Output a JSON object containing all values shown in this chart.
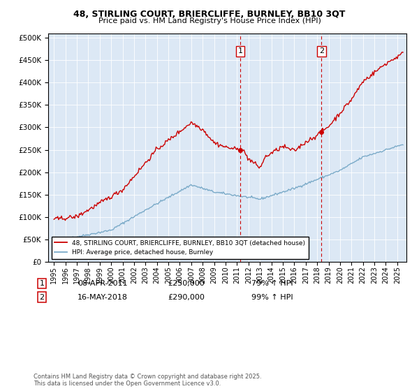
{
  "title": "48, STIRLING COURT, BRIERCLIFFE, BURNLEY, BB10 3QT",
  "subtitle": "Price paid vs. HM Land Registry's House Price Index (HPI)",
  "legend_line1": "48, STIRLING COURT, BRIERCLIFFE, BURNLEY, BB10 3QT (detached house)",
  "legend_line2": "HPI: Average price, detached house, Burnley",
  "annotation1_date": "08-APR-2011",
  "annotation1_price": "£250,000",
  "annotation1_hpi": "79% ↑ HPI",
  "annotation2_date": "16-MAY-2018",
  "annotation2_price": "£290,000",
  "annotation2_hpi": "99% ↑ HPI",
  "footnote": "Contains HM Land Registry data © Crown copyright and database right 2025.\nThis data is licensed under the Open Government Licence v3.0.",
  "transaction1_x": 2011.27,
  "transaction1_y": 250000,
  "transaction2_x": 2018.38,
  "transaction2_y": 290000,
  "red_color": "#cc0000",
  "blue_color": "#7aaac8",
  "background_color": "#dce8f5",
  "ylim_min": 0,
  "ylim_max": 510000,
  "xlim_min": 1994.5,
  "xlim_max": 2025.8,
  "yticks": [
    0,
    50000,
    100000,
    150000,
    200000,
    250000,
    300000,
    350000,
    400000,
    450000,
    500000
  ],
  "xticks": [
    1995,
    1996,
    1997,
    1998,
    1999,
    2000,
    2001,
    2002,
    2003,
    2004,
    2005,
    2006,
    2007,
    2008,
    2009,
    2010,
    2011,
    2012,
    2013,
    2014,
    2015,
    2016,
    2017,
    2018,
    2019,
    2020,
    2021,
    2022,
    2023,
    2024,
    2025
  ]
}
